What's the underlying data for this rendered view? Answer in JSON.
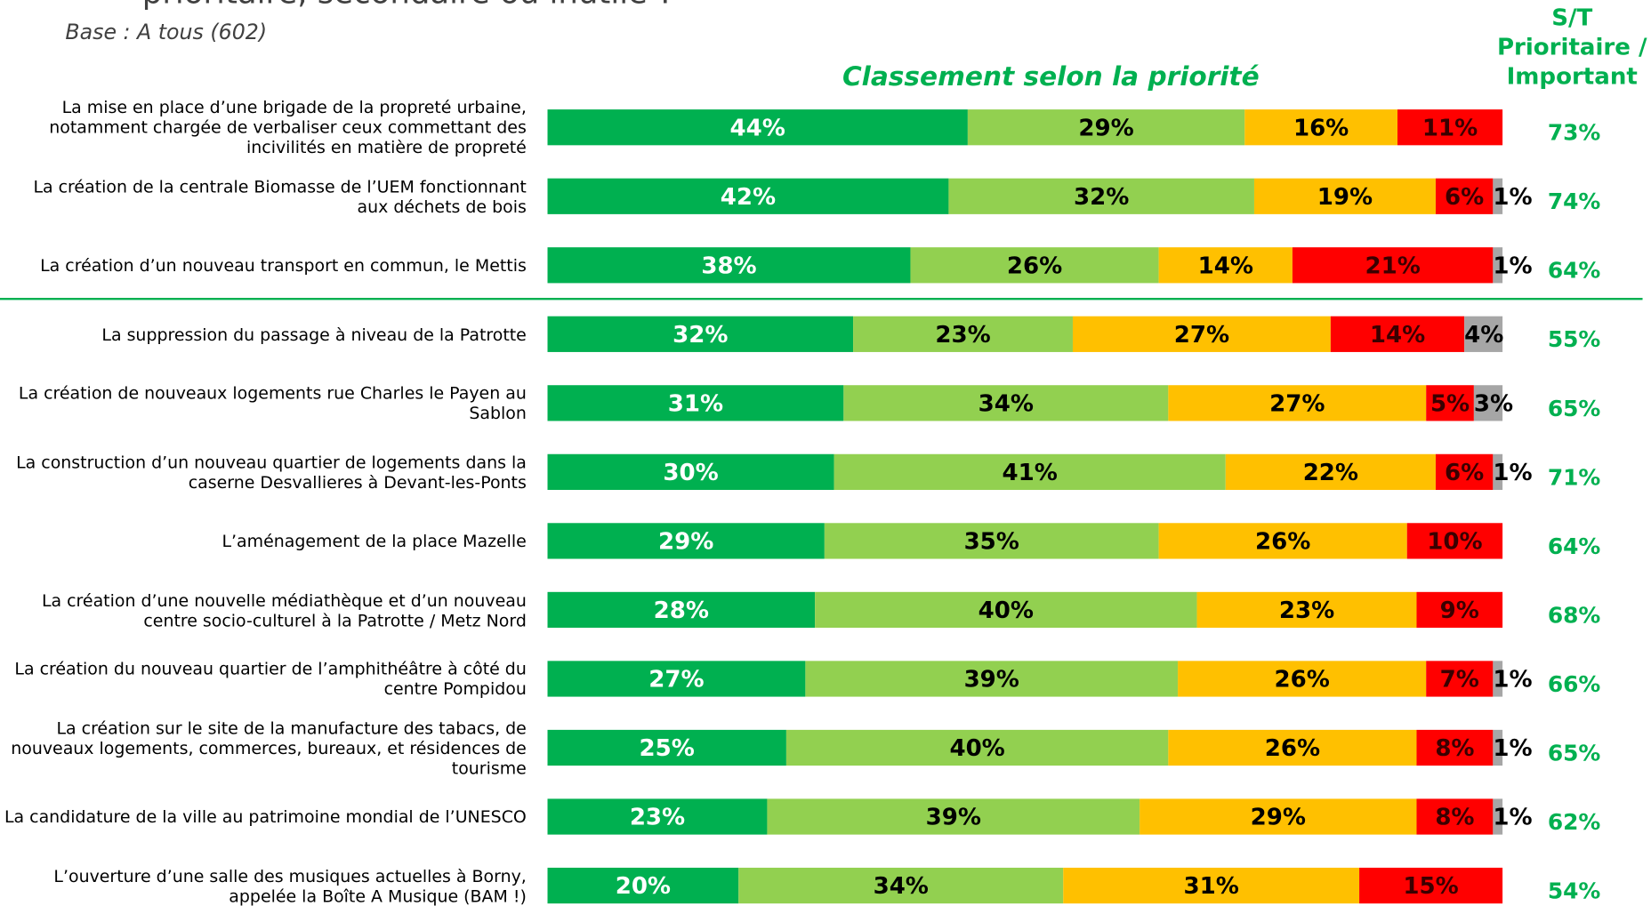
{
  "chart_data": {
    "type": "stacked-bar-horizontal",
    "title": "prioritaire, secondaire ou inutile ?",
    "subtitle": "Base : A tous (602)",
    "chart_heading": "Classement selon la priorité",
    "categories": [
      "La mise en place d’une brigade de la propreté urbaine, notamment chargée de verbaliser ceux commettant des incivilités en matière de propreté",
      "La création de la centrale Biomasse de l’UEM fonctionnant aux déchets de bois",
      "La création d’un nouveau transport en commun, le Mettis",
      "La suppression du passage à niveau de la Patrotte",
      "La création de nouveaux logements rue Charles le Payen au Sablon",
      "La construction d’un nouveau quartier de logements dans la caserne Desvallieres à Devant-les-Ponts",
      "L’aménagement de la place Mazelle",
      "La création d’une nouvelle médiathèque et d’un nouveau centre socio-culturel à la Patrotte / Metz Nord",
      "La création du nouveau quartier de l’amphithéâtre à côté du centre Pompidou",
      "La création sur le site de la manufacture des tabacs, de nouveaux logements, commerces, bureaux, et résidences de tourisme",
      "La candidature de la ville au patrimoine mondial de l’UNESCO",
      "L’ouverture d’une salle des musiques actuelles à Borny, appelée la Boîte A Musique (BAM !)"
    ],
    "xlim": [
      0,
      100
    ],
    "series": [
      {
        "color": "#00b050",
        "values": [
          44,
          42,
          38,
          32,
          31,
          30,
          29,
          28,
          27,
          25,
          23,
          20
        ],
        "value_labels": [
          "44%",
          "42%",
          "38%",
          "32%",
          "31%",
          "30%",
          "29%",
          "28%",
          "27%",
          "25%",
          "23%",
          "20%"
        ]
      },
      {
        "color": "#92d050",
        "values": [
          29,
          32,
          26,
          23,
          34,
          41,
          35,
          40,
          39,
          40,
          39,
          34
        ],
        "value_labels": [
          "29%",
          "32%",
          "26%",
          "23%",
          "34%",
          "41%",
          "35%",
          "40%",
          "39%",
          "40%",
          "39%",
          "34%"
        ]
      },
      {
        "color": "#ffc000",
        "values": [
          16,
          19,
          14,
          27,
          27,
          22,
          26,
          23,
          26,
          26,
          29,
          31
        ],
        "value_labels": [
          "16%",
          "19%",
          "14%",
          "27%",
          "27%",
          "22%",
          "26%",
          "23%",
          "26%",
          "26%",
          "29%",
          "31%"
        ]
      },
      {
        "color": "#ff0000",
        "values": [
          11,
          6,
          21,
          14,
          5,
          6,
          10,
          9,
          7,
          8,
          8,
          15
        ],
        "value_labels": [
          "11%",
          "6%",
          "21%",
          "14%",
          "5%",
          "6%",
          "10%",
          "9%",
          "7%",
          "8%",
          "8%",
          "15%"
        ]
      },
      {
        "color": "#a6a6a6",
        "values": [
          null,
          1,
          1,
          4,
          3,
          1,
          null,
          null,
          1,
          1,
          1,
          null
        ],
        "value_labels": [
          null,
          "1%",
          "1%",
          "4%",
          "3%",
          "1%",
          null,
          null,
          "1%",
          "1%",
          "1%",
          null
        ]
      }
    ],
    "totals": {
      "header_lines": [
        "S/T",
        "Prioritaire /",
        "Important"
      ],
      "color": "#00b050",
      "values": [
        73,
        74,
        64,
        55,
        65,
        71,
        64,
        68,
        66,
        65,
        62,
        54
      ],
      "value_labels": [
        "73%",
        "74%",
        "64%",
        "55%",
        "65%",
        "71%",
        "64%",
        "68%",
        "66%",
        "65%",
        "62%",
        "54%"
      ]
    }
  }
}
